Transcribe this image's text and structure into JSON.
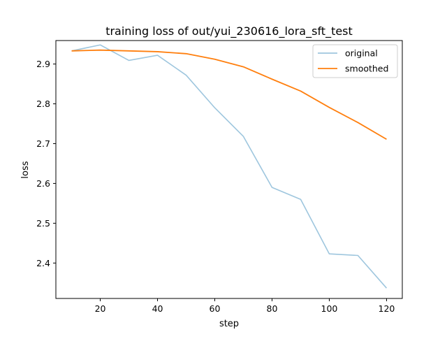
{
  "chart_data": {
    "type": "line",
    "title": "training loss of out/yui_230616_lora_sft_test",
    "xlabel": "step",
    "ylabel": "loss",
    "x": [
      10,
      20,
      30,
      40,
      50,
      60,
      70,
      80,
      90,
      100,
      110,
      120
    ],
    "xlim": [
      4.5,
      125.5
    ],
    "ylim": [
      2.311,
      2.959
    ],
    "xticks": [
      20,
      40,
      60,
      80,
      100,
      120
    ],
    "yticks": [
      2.4,
      2.5,
      2.6,
      2.7,
      2.8,
      2.9
    ],
    "xtick_labels": [
      "20",
      "40",
      "60",
      "80",
      "100",
      "120"
    ],
    "ytick_labels": [
      "2.4",
      "2.5",
      "2.6",
      "2.7",
      "2.8",
      "2.9"
    ],
    "grid": false,
    "legend_position": "top-right",
    "series": [
      {
        "name": "original",
        "color": "#9ec6de",
        "values": [
          2.933,
          2.948,
          2.909,
          2.922,
          2.872,
          2.79,
          2.718,
          2.59,
          2.56,
          2.423,
          2.419,
          2.337
        ]
      },
      {
        "name": "smoothed",
        "color": "#ff7f0e",
        "values": [
          2.933,
          2.935,
          2.933,
          2.931,
          2.926,
          2.912,
          2.893,
          2.862,
          2.832,
          2.791,
          2.753,
          2.711
        ]
      }
    ]
  }
}
